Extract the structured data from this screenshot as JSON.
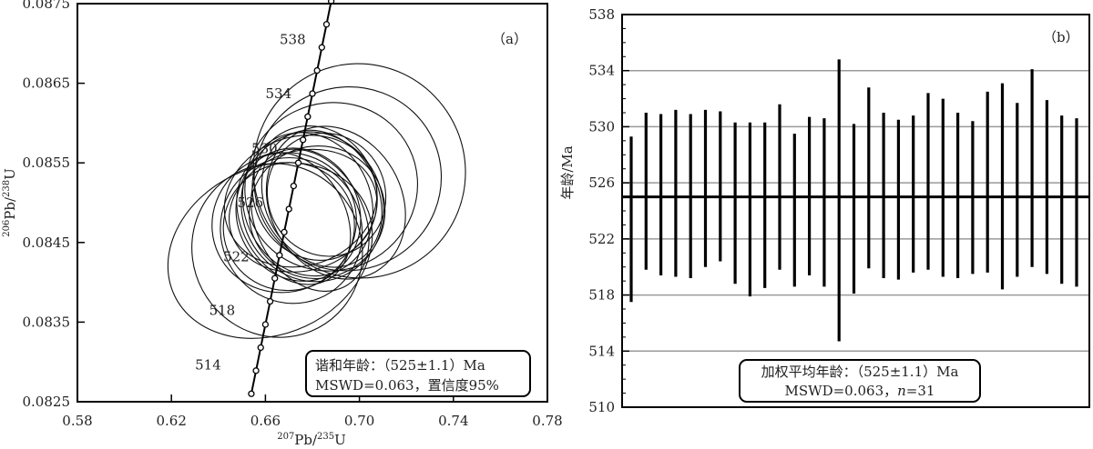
{
  "chart_data": [
    {
      "type": "scatter",
      "subtype": "concordia",
      "panel_label": "（a）",
      "xlabel": "207Pb/235U",
      "ylabel": "206Pb/238U",
      "xlim": [
        0.58,
        0.78
      ],
      "ylim": [
        0.0825,
        0.0875
      ],
      "x_ticks": [
        "0.58",
        "0.62",
        "0.66",
        "0.70",
        "0.74",
        "0.78"
      ],
      "y_ticks": [
        "0.0825",
        "0.0835",
        "0.0845",
        "0.0855",
        "0.0865",
        "0.0875"
      ],
      "concordia_age_labels": [
        {
          "age": 514,
          "text": "514",
          "x": 0.652,
          "y": 0.08296
        },
        {
          "age": 518,
          "text": "518",
          "x": 0.658,
          "y": 0.08365
        },
        {
          "age": 522,
          "text": "522",
          "x": 0.664,
          "y": 0.08432
        },
        {
          "age": 526,
          "text": "526",
          "x": 0.67,
          "y": 0.085
        },
        {
          "age": 530,
          "text": "530",
          "x": 0.676,
          "y": 0.08568
        },
        {
          "age": 534,
          "text": "534",
          "x": 0.682,
          "y": 0.08637
        },
        {
          "age": 538,
          "text": "538",
          "x": 0.688,
          "y": 0.08705
        }
      ],
      "concordia_curve": [
        [
          0.654,
          0.0826
        ],
        [
          0.656,
          0.08289
        ],
        [
          0.658,
          0.08318
        ],
        [
          0.66,
          0.08347
        ],
        [
          0.662,
          0.08376
        ],
        [
          0.664,
          0.08405
        ],
        [
          0.666,
          0.08434
        ],
        [
          0.668,
          0.08463
        ],
        [
          0.67,
          0.08492
        ],
        [
          0.672,
          0.08521
        ],
        [
          0.674,
          0.0855
        ],
        [
          0.676,
          0.08579
        ],
        [
          0.678,
          0.08608
        ],
        [
          0.68,
          0.08637
        ],
        [
          0.682,
          0.08666
        ],
        [
          0.684,
          0.08695
        ],
        [
          0.686,
          0.08724
        ],
        [
          0.688,
          0.08753
        ]
      ],
      "ellipses": [
        {
          "cx": 0.674,
          "cy": 0.08485,
          "rx": 0.026,
          "ry": 0.00085,
          "angle": -25
        },
        {
          "cx": 0.68,
          "cy": 0.08495,
          "rx": 0.03,
          "ry": 0.00095,
          "angle": -22
        },
        {
          "cx": 0.67,
          "cy": 0.0847,
          "rx": 0.028,
          "ry": 0.0008,
          "angle": -20
        },
        {
          "cx": 0.684,
          "cy": 0.08505,
          "rx": 0.024,
          "ry": 0.0009,
          "angle": -28
        },
        {
          "cx": 0.676,
          "cy": 0.0849,
          "rx": 0.032,
          "ry": 0.00075,
          "angle": -18
        },
        {
          "cx": 0.672,
          "cy": 0.0848,
          "rx": 0.022,
          "ry": 0.00088,
          "angle": -30
        },
        {
          "cx": 0.678,
          "cy": 0.08498,
          "rx": 0.027,
          "ry": 0.00092,
          "angle": -24
        },
        {
          "cx": 0.682,
          "cy": 0.08488,
          "rx": 0.029,
          "ry": 0.00083,
          "angle": -21
        },
        {
          "cx": 0.668,
          "cy": 0.08475,
          "rx": 0.031,
          "ry": 0.00087,
          "angle": -26
        },
        {
          "cx": 0.686,
          "cy": 0.0851,
          "rx": 0.025,
          "ry": 0.00078,
          "angle": -23
        },
        {
          "cx": 0.675,
          "cy": 0.08502,
          "rx": 0.033,
          "ry": 0.00081,
          "angle": -19
        },
        {
          "cx": 0.679,
          "cy": 0.08478,
          "rx": 0.023,
          "ry": 0.00094,
          "angle": -27
        },
        {
          "cx": 0.665,
          "cy": 0.0844,
          "rx": 0.036,
          "ry": 0.0011,
          "angle": -28
        },
        {
          "cx": 0.695,
          "cy": 0.0853,
          "rx": 0.04,
          "ry": 0.00115,
          "angle": -24
        },
        {
          "cx": 0.688,
          "cy": 0.0852,
          "rx": 0.037,
          "ry": 0.00105,
          "angle": -26
        },
        {
          "cx": 0.7,
          "cy": 0.0854,
          "rx": 0.045,
          "ry": 0.00135,
          "angle": -23
        },
        {
          "cx": 0.662,
          "cy": 0.0844,
          "rx": 0.045,
          "ry": 0.00105,
          "angle": -25
        },
        {
          "cx": 0.69,
          "cy": 0.085,
          "rx": 0.028,
          "ry": 0.001,
          "angle": -30
        },
        {
          "cx": 0.671,
          "cy": 0.08465,
          "rx": 0.03,
          "ry": 0.00092,
          "angle": -22
        },
        {
          "cx": 0.681,
          "cy": 0.08512,
          "rx": 0.026,
          "ry": 0.00086,
          "angle": -25
        }
      ],
      "annotation": {
        "line1": "谐和年龄：（525±1.1）Ma",
        "line2": "MSWD=0.063，置信度95%"
      }
    },
    {
      "type": "bar",
      "subtype": "weighted-mean-error-bars",
      "panel_label": "（b）",
      "ylabel": "年龄/Ma",
      "ylim": [
        510,
        538
      ],
      "y_ticks": [
        "510",
        "514",
        "518",
        "522",
        "526",
        "530",
        "534",
        "538"
      ],
      "grid": true,
      "mean": 525,
      "bars": [
        {
          "low": 517.5,
          "high": 529.3
        },
        {
          "low": 519.8,
          "high": 531.0
        },
        {
          "low": 519.4,
          "high": 530.9
        },
        {
          "low": 519.3,
          "high": 531.2
        },
        {
          "low": 519.2,
          "high": 530.9
        },
        {
          "low": 520.0,
          "high": 531.2
        },
        {
          "low": 520.4,
          "high": 531.1
        },
        {
          "low": 518.8,
          "high": 530.3
        },
        {
          "low": 517.9,
          "high": 530.3
        },
        {
          "low": 518.5,
          "high": 530.3
        },
        {
          "low": 519.8,
          "high": 531.6
        },
        {
          "low": 518.6,
          "high": 529.5
        },
        {
          "low": 519.4,
          "high": 530.7
        },
        {
          "low": 518.6,
          "high": 530.6
        },
        {
          "low": 514.7,
          "high": 534.8
        },
        {
          "low": 518.1,
          "high": 530.2
        },
        {
          "low": 519.9,
          "high": 532.8
        },
        {
          "low": 519.2,
          "high": 531.0
        },
        {
          "low": 519.1,
          "high": 530.5
        },
        {
          "low": 519.6,
          "high": 530.8
        },
        {
          "low": 519.8,
          "high": 532.4
        },
        {
          "low": 519.3,
          "high": 532.0
        },
        {
          "low": 519.2,
          "high": 531.0
        },
        {
          "low": 519.5,
          "high": 530.4
        },
        {
          "low": 519.6,
          "high": 532.5
        },
        {
          "low": 518.4,
          "high": 533.1
        },
        {
          "low": 519.3,
          "high": 531.7
        },
        {
          "low": 520.0,
          "high": 534.1
        },
        {
          "low": 519.5,
          "high": 531.9
        },
        {
          "low": 518.8,
          "high": 530.8
        },
        {
          "low": 518.6,
          "high": 530.6
        }
      ],
      "annotation": {
        "line1": "加权平均年龄：（525±1.1）Ma",
        "line2_prefix": "MSWD=0.063，",
        "line2_var": "n",
        "line2_suffix": "=31"
      }
    }
  ]
}
